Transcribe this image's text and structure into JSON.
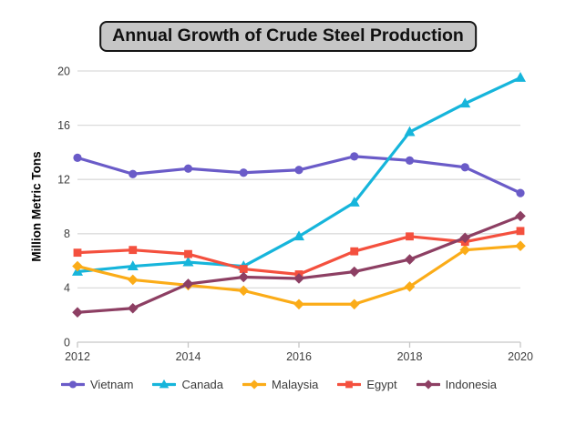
{
  "title": "Annual Growth of Crude Steel Production",
  "chart_data": {
    "type": "line",
    "title": "Annual Growth of Crude Steel Production",
    "xlabel": "",
    "ylabel": "Million Metric Tons",
    "x": [
      2012,
      2013,
      2014,
      2015,
      2016,
      2017,
      2018,
      2019,
      2020
    ],
    "x_tick_labels": [
      "2012",
      "2014",
      "2016",
      "2018",
      "2020"
    ],
    "y_ticks": [
      0,
      4,
      8,
      12,
      16,
      20
    ],
    "ylim": [
      0,
      20
    ],
    "grid": true,
    "legend_position": "bottom",
    "series": [
      {
        "name": "Vietnam",
        "color": "#6A5BC8",
        "marker": "circle",
        "values": [
          13.6,
          12.4,
          12.8,
          12.5,
          12.7,
          13.7,
          13.4,
          12.9,
          11.0
        ]
      },
      {
        "name": "Canada",
        "color": "#16B5DB",
        "marker": "triangle",
        "values": [
          5.2,
          5.6,
          5.9,
          5.6,
          7.8,
          10.3,
          15.5,
          17.6,
          19.5
        ]
      },
      {
        "name": "Malaysia",
        "color": "#FBAC18",
        "marker": "diamond",
        "values": [
          5.6,
          4.6,
          4.2,
          3.8,
          2.8,
          2.8,
          4.1,
          6.8,
          7.1
        ]
      },
      {
        "name": "Egypt",
        "color": "#F4503E",
        "marker": "square",
        "values": [
          6.6,
          6.8,
          6.5,
          5.4,
          5.0,
          6.7,
          7.8,
          7.4,
          8.2
        ]
      },
      {
        "name": "Indonesia",
        "color": "#8D3F63",
        "marker": "diamond",
        "values": [
          2.2,
          2.5,
          4.3,
          4.8,
          4.7,
          5.2,
          6.1,
          7.7,
          9.3
        ]
      }
    ]
  },
  "styles": {
    "background": "#FFFFFF",
    "title_bg": "#C6C6C6",
    "title_border": "#141414",
    "grid_color": "#DBDBDB",
    "axis_color": "#C6C6C6",
    "tick_label_color": "#3E3E3E",
    "legend_label_color": "#3A3A3A"
  }
}
